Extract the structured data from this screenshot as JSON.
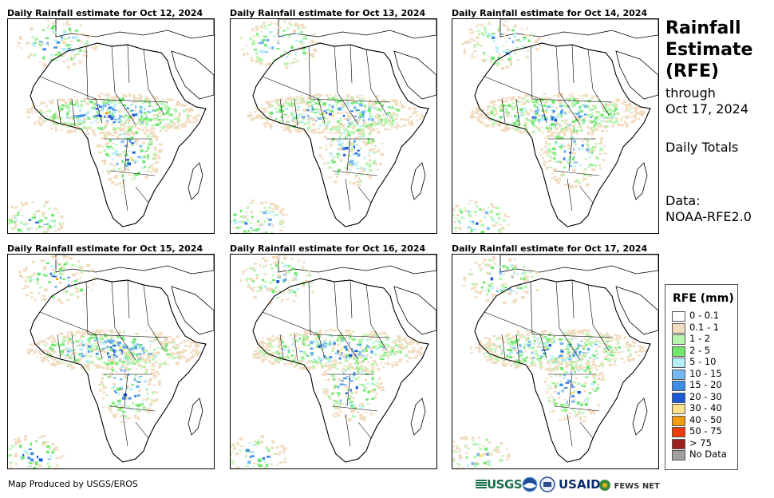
{
  "panels": [
    {
      "title": "Daily Rainfall estimate for Oct 12, 2024"
    },
    {
      "title": "Daily Rainfall estimate for Oct 13, 2024"
    },
    {
      "title": "Daily Rainfall estimate for Oct 14, 2024"
    },
    {
      "title": "Daily Rainfall estimate for Oct 15, 2024"
    },
    {
      "title": "Daily Rainfall estimate for Oct 16, 2024"
    },
    {
      "title": "Daily Rainfall estimate for Oct 17, 2024"
    }
  ],
  "sidebar": {
    "title": "Rainfall\nEstimate\n(RFE)",
    "through": "through\nOct 17, 2024",
    "totals": "Daily Totals",
    "data_source": "Data:\nNOAA-RFE2.0"
  },
  "legend": {
    "title": "RFE (mm)",
    "items": [
      {
        "label": "0 - 0.1",
        "color": "#ffffff"
      },
      {
        "label": "0.1 - 1",
        "color": "#f2dcc0"
      },
      {
        "label": "1 - 2",
        "color": "#b9f5b0"
      },
      {
        "label": "2 - 5",
        "color": "#6ee86e"
      },
      {
        "label": "5 - 10",
        "color": "#b8eef5"
      },
      {
        "label": "10 - 15",
        "color": "#78b8f0"
      },
      {
        "label": "15 - 20",
        "color": "#3c8ce8"
      },
      {
        "label": "20 - 30",
        "color": "#1c5ad8"
      },
      {
        "label": "30 - 40",
        "color": "#fae38c"
      },
      {
        "label": "40 - 50",
        "color": "#f59b12"
      },
      {
        "label": "50 - 75",
        "color": "#f03c0a"
      },
      {
        "label": "> 75",
        "color": "#a0201e"
      },
      {
        "label": "No Data",
        "color": "#a0a0a0"
      }
    ]
  },
  "footer": {
    "credit": "Map Produced by USGS/EROS",
    "logos": [
      "USGS",
      "NOAA",
      "DOC",
      "USAID",
      "FEWS NET"
    ]
  }
}
